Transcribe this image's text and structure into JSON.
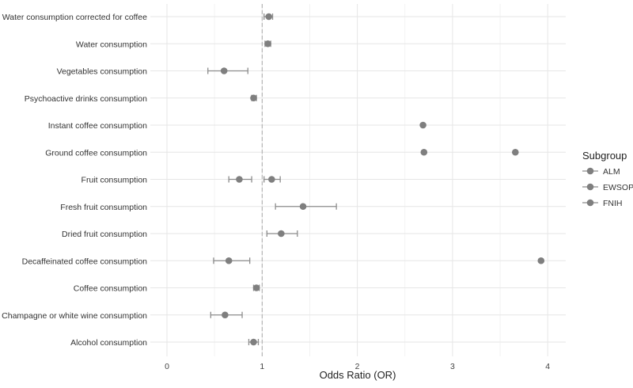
{
  "chart_data": {
    "type": "scatter",
    "subtype": "forest-plot",
    "xlabel": "Odds Ratio (OR)",
    "ylabel": "",
    "xlim": [
      -0.15,
      4.2
    ],
    "x_ticks": [
      0,
      1,
      2,
      3,
      4
    ],
    "reference_line": 1,
    "grid": true,
    "legend": {
      "title": "Subgroup",
      "placement": "right",
      "entries": [
        "ALM",
        "EWSOP",
        "FNIH"
      ]
    },
    "colors": {
      "point": "#7f7f7f",
      "errorbar": "#8c8c8c",
      "grid": "#e6e6e6",
      "refline": "#aaaaaa"
    },
    "categories": [
      "Water consumption corrected for coffee",
      "Water consumption",
      "Vegetables consumption",
      "Psychoactive drinks consumption",
      "Instant coffee consumption",
      "Ground coffee consumption",
      "Fruit consumption",
      "Fresh fruit consumption",
      "Dried fruit consumption",
      "Decaffeinated coffee consumption",
      "Coffee consumption",
      "Champagne or white wine consumption",
      "Alcohol consumption"
    ],
    "points": [
      {
        "category": "Water consumption corrected for coffee",
        "or": 1.07,
        "lo": 1.02,
        "hi": 1.11
      },
      {
        "category": "Water consumption",
        "or": 1.06,
        "lo": 1.03,
        "hi": 1.09
      },
      {
        "category": "Vegetables consumption",
        "or": 0.6,
        "lo": 0.43,
        "hi": 0.85
      },
      {
        "category": "Psychoactive drinks consumption",
        "or": 0.91,
        "lo": 0.89,
        "hi": 0.94
      },
      {
        "category": "Instant coffee consumption",
        "or": 2.69,
        "lo": null,
        "hi": null
      },
      {
        "category": "Ground coffee consumption",
        "or": 2.7,
        "lo": null,
        "hi": null
      },
      {
        "category": "Ground coffee consumption",
        "or": 3.66,
        "lo": null,
        "hi": null
      },
      {
        "category": "Fruit consumption",
        "or": 0.76,
        "lo": 0.65,
        "hi": 0.89
      },
      {
        "category": "Fruit consumption",
        "or": 1.1,
        "lo": 1.02,
        "hi": 1.19
      },
      {
        "category": "Fresh fruit consumption",
        "or": 1.43,
        "lo": 1.14,
        "hi": 1.78
      },
      {
        "category": "Dried fruit consumption",
        "or": 1.2,
        "lo": 1.05,
        "hi": 1.37
      },
      {
        "category": "Decaffeinated coffee consumption",
        "or": 0.65,
        "lo": 0.49,
        "hi": 0.87
      },
      {
        "category": "Decaffeinated coffee consumption",
        "or": 3.93,
        "lo": null,
        "hi": null
      },
      {
        "category": "Coffee consumption",
        "or": 0.94,
        "lo": 0.91,
        "hi": 0.97
      },
      {
        "category": "Champagne or white wine consumption",
        "or": 0.61,
        "lo": 0.46,
        "hi": 0.79
      },
      {
        "category": "Alcohol consumption",
        "or": 0.91,
        "lo": 0.86,
        "hi": 0.96
      }
    ]
  }
}
